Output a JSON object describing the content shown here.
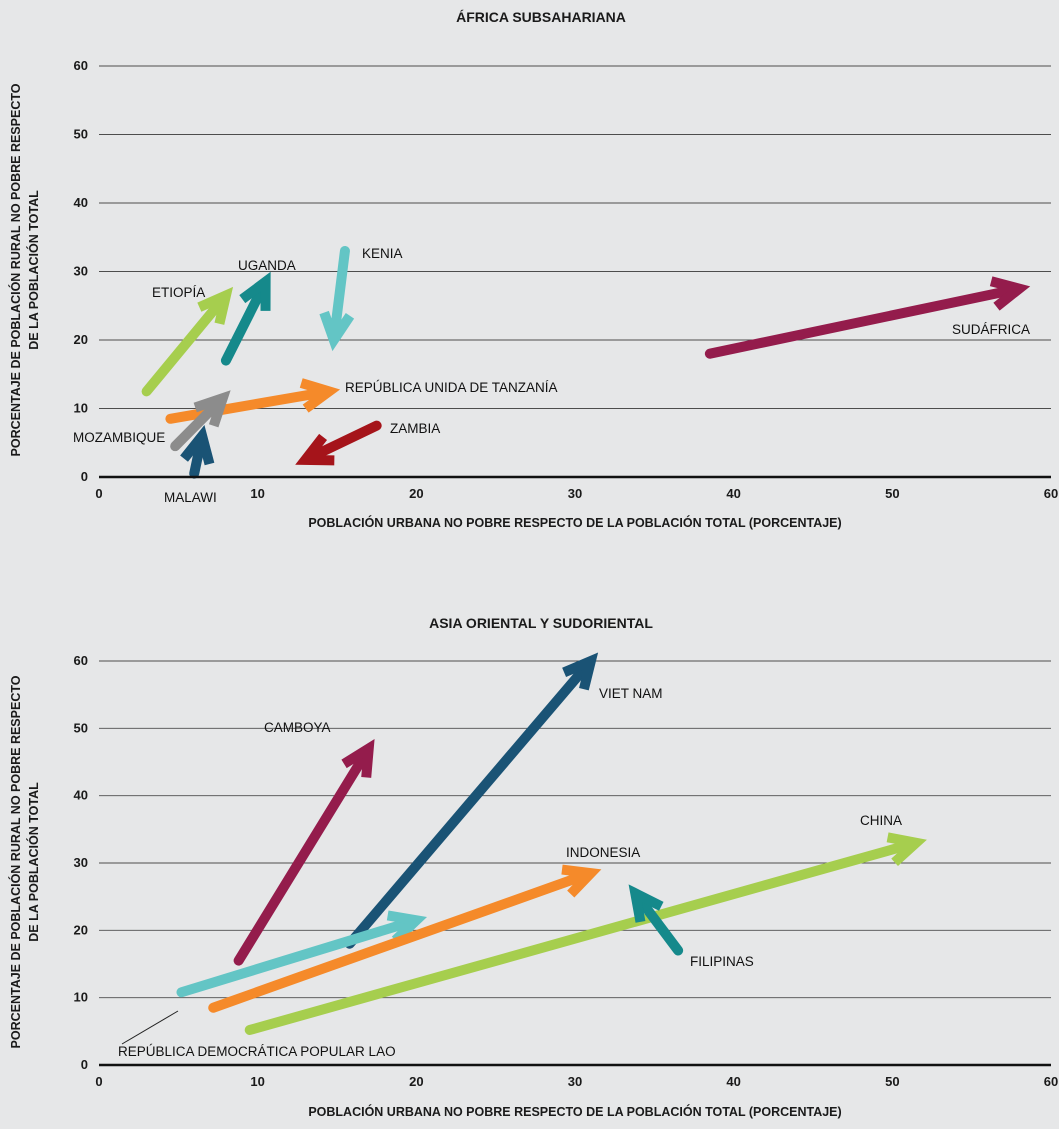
{
  "chart_data": [
    {
      "type": "arrow",
      "title": "ÁFRICA SUBSAHARIANA",
      "xlabel": "POBLACIÓN URBANA NO POBRE RESPECTO DE LA POBLACIÓN TOTAL (PORCENTAJE)",
      "ylabel": [
        "PORCENTAJE DE POBLACIÓN RURAL NO POBRE RESPECTO",
        "DE LA POBLACIÓN TOTAL"
      ],
      "xlim": [
        0,
        60
      ],
      "ylim": [
        0,
        60
      ],
      "xticks": [
        0,
        10,
        20,
        30,
        40,
        50,
        60
      ],
      "yticks": [
        0,
        10,
        20,
        30,
        40,
        50,
        60
      ],
      "grid": true,
      "series": [
        {
          "name": "ETIOPÍA",
          "from": [
            3,
            12.5
          ],
          "to": [
            8,
            26.5
          ],
          "color": "#a6ce4e"
        },
        {
          "name": "UGANDA",
          "from": [
            8,
            17
          ],
          "to": [
            10.5,
            28.5
          ],
          "color": "#15898b"
        },
        {
          "name": "KENIA",
          "from": [
            15.5,
            33
          ],
          "to": [
            14.8,
            20
          ],
          "color": "#63c5c5"
        },
        {
          "name": "SUDÁFRICA",
          "from": [
            38.5,
            18
          ],
          "to": [
            58,
            27.5
          ],
          "color": "#941c4c"
        },
        {
          "name": "REPÚBLICA UNIDA DE TANZANÍA",
          "from": [
            4.5,
            8.5
          ],
          "to": [
            14.5,
            12.5
          ],
          "color": "#f58a2a"
        },
        {
          "name": "MOZAMBIQUE",
          "from": [
            4.8,
            4.5
          ],
          "to": [
            7.8,
            11.5
          ],
          "color": "#8c8c8c"
        },
        {
          "name": "ZAMBIA",
          "from": [
            17.5,
            7.5
          ],
          "to": [
            13,
            2.5
          ],
          "color": "#a5141a"
        },
        {
          "name": "MALAWI",
          "from": [
            6,
            0.5
          ],
          "to": [
            6.5,
            6
          ],
          "color": "#1a5375"
        }
      ]
    },
    {
      "type": "arrow",
      "title": "ASIA ORIENTAL Y SUDORIENTAL",
      "xlabel": "POBLACIÓN URBANA NO POBRE RESPECTO DE LA POBLACIÓN TOTAL (PORCENTAJE)",
      "ylabel": [
        "PORCENTAJE DE POBLACIÓN RURAL NO POBRE RESPECTO",
        "DE LA POBLACIÓN TOTAL"
      ],
      "xlim": [
        0,
        60
      ],
      "ylim": [
        0,
        60
      ],
      "xticks": [
        0,
        10,
        20,
        30,
        40,
        50,
        60
      ],
      "yticks": [
        0,
        10,
        20,
        30,
        40,
        50,
        60
      ],
      "grid": true,
      "series": [
        {
          "name": "CAMBOYA",
          "from": [
            8.8,
            15.5
          ],
          "to": [
            17,
            47
          ],
          "color": "#941c4c"
        },
        {
          "name": "VIET NAM",
          "from": [
            15.8,
            18
          ],
          "to": [
            31,
            60
          ],
          "color": "#1a5375"
        },
        {
          "name": "REPÚBLICA DEMOCRÁTICA POPULAR LAO",
          "from": [
            5.2,
            10.8
          ],
          "to": [
            20,
            21.5
          ],
          "color": "#63c5c5"
        },
        {
          "name": "INDONESIA",
          "from": [
            7.2,
            8.5
          ],
          "to": [
            31,
            28.5
          ],
          "color": "#f58a2a"
        },
        {
          "name": "CHINA",
          "from": [
            9.5,
            5.2
          ],
          "to": [
            51.5,
            33
          ],
          "color": "#a6ce4e"
        },
        {
          "name": "FILIPINAS",
          "from": [
            36.5,
            17
          ],
          "to": [
            33.8,
            25.5
          ],
          "color": "#15898b"
        }
      ]
    }
  ]
}
